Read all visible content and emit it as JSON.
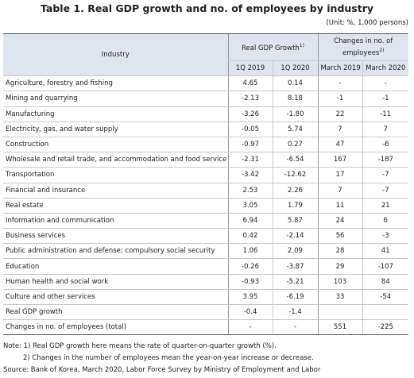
{
  "header": {
    "title": "Table 1. Real GDP growth and no. of employees by industry",
    "unit": "(Unit: %, 1,000 persons)"
  },
  "table": {
    "columns": {
      "industry": "Industry",
      "gdp": {
        "label": "Real GDP Growth",
        "note": "1)"
      },
      "emp": {
        "label": "Changes in no. of employees",
        "note": "2)"
      },
      "sub": [
        "1Q 2019",
        "1Q 2020",
        "March 2019",
        "March 2020"
      ]
    },
    "rows": [
      [
        "Agriculture, forestry and fishing",
        "4.65",
        "0.14",
        "-",
        "-"
      ],
      [
        "Mining and quarrying",
        "-2.13",
        "8.18",
        "-1",
        "-1"
      ],
      [
        "Manufacturing",
        "-3.26",
        "-1.80",
        "22",
        "-11"
      ],
      [
        "Electricity, gas, and water supply",
        "-0.05",
        "5.74",
        "7",
        "7"
      ],
      [
        "Construction",
        "-0.97",
        "0.27",
        "47",
        "-6"
      ],
      [
        "Wholesale and retail trade, and accommodation and food service",
        "-2.31",
        "-6.54",
        "167",
        "-187"
      ],
      [
        "Transportation",
        "-3.42",
        "-12.62",
        "17",
        "-7"
      ],
      [
        "Financial and insurance",
        "2.53",
        "2.26",
        "7",
        "-7"
      ],
      [
        "Real estate",
        "3.05",
        "1.79",
        "11",
        "21"
      ],
      [
        "Information and communication",
        "6.94",
        "5.87",
        "24",
        "6"
      ],
      [
        "Business services",
        "0.42",
        "-2.14",
        "56",
        "-3"
      ],
      [
        "Public administration and defense; compulsory social security",
        "1.06",
        "2.09",
        "28",
        "41"
      ],
      [
        "Education",
        "-0.26",
        "-3.87",
        "29",
        "-107"
      ],
      [
        "Human health and social work",
        "-0.93",
        "-5.21",
        "103",
        "84"
      ],
      [
        "Culture and other services",
        "3.95",
        "-6.19",
        "33",
        "-54"
      ],
      [
        "Real GDP growth",
        "-0.4",
        "-1.4",
        "",
        ""
      ],
      [
        "Changes in no. of employees (total)",
        "-",
        "-",
        "551",
        "-225"
      ]
    ]
  },
  "notes": [
    "Note: 1) Real GDP growth here means the rate of quarter-on-quarter growth (%).",
    "2) Changes in the number of employees mean the year-on-year increase or decrease."
  ],
  "source": "Source: Bank of Korea, March 2020, Labor Force Survey by Ministry of Employment and Labor"
}
